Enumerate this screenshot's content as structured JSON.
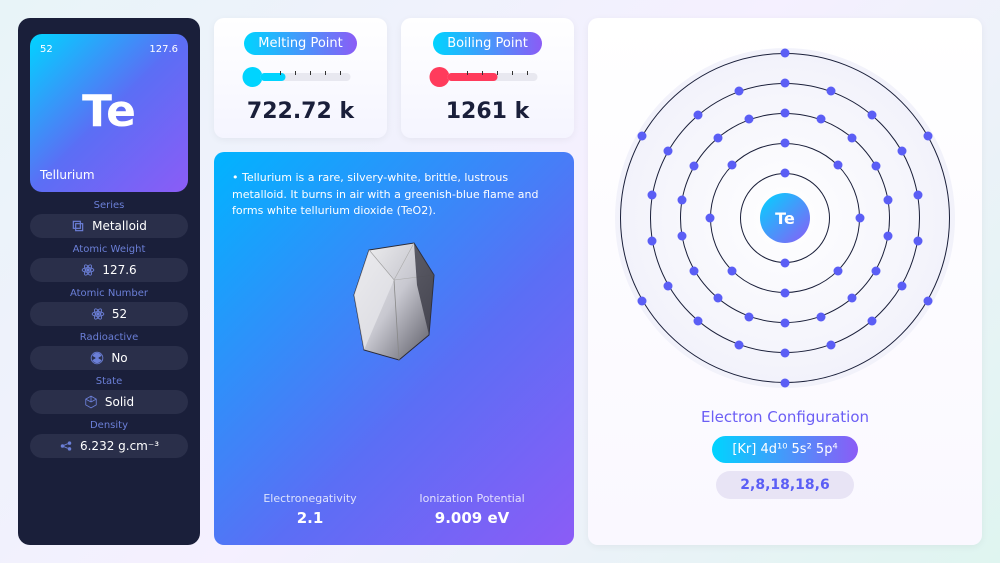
{
  "element": {
    "atomic_number": "52",
    "atomic_mass": "127.6",
    "symbol": "Te",
    "name": "Tellurium"
  },
  "properties": [
    {
      "label": "Series",
      "value": "Metalloid",
      "icon": "layers"
    },
    {
      "label": "Atomic Weight",
      "value": "127.6",
      "icon": "atom"
    },
    {
      "label": "Atomic Number",
      "value": "52",
      "icon": "atom"
    },
    {
      "label": "Radioactive",
      "value": "No",
      "icon": "radioactive"
    },
    {
      "label": "State",
      "value": "Solid",
      "icon": "cube"
    },
    {
      "label": "Density",
      "value": "6.232 g.cm⁻³",
      "icon": "molecule"
    }
  ],
  "melting": {
    "label": "Melting Point",
    "value": "722.72 k",
    "thermo_color": "#00d4ff"
  },
  "boiling": {
    "label": "Boiling Point",
    "value": "1261 k",
    "thermo_color": "#ff3b5c"
  },
  "description": "Tellurium is a rare, silvery-white, brittle, lustrous metalloid. It burns in air with a greenish-blue flame and forms white tellurium dioxide (TeO2).",
  "electronegativity": {
    "label": "Electronegativity",
    "value": "2.1"
  },
  "ionization": {
    "label": "Ionization Potential",
    "value": "9.009 eV"
  },
  "electron": {
    "title": "Electron Configuration",
    "config": "[Kr] 4d¹⁰ 5s² 5p⁴",
    "shells_text": "2,8,18,18,6",
    "shells": [
      2,
      8,
      18,
      18,
      6
    ],
    "shell_radii": [
      45,
      75,
      105,
      135,
      165
    ],
    "electron_color": "#5b5ef5",
    "shell_border": "#1a1f3a"
  },
  "colors": {
    "dark_bg": "#1a1f3a",
    "pill_bg": "#2a2f4a",
    "label_color": "#6b7fd7",
    "gradient_start": "#00d4ff",
    "gradient_end": "#8b5cf6"
  }
}
